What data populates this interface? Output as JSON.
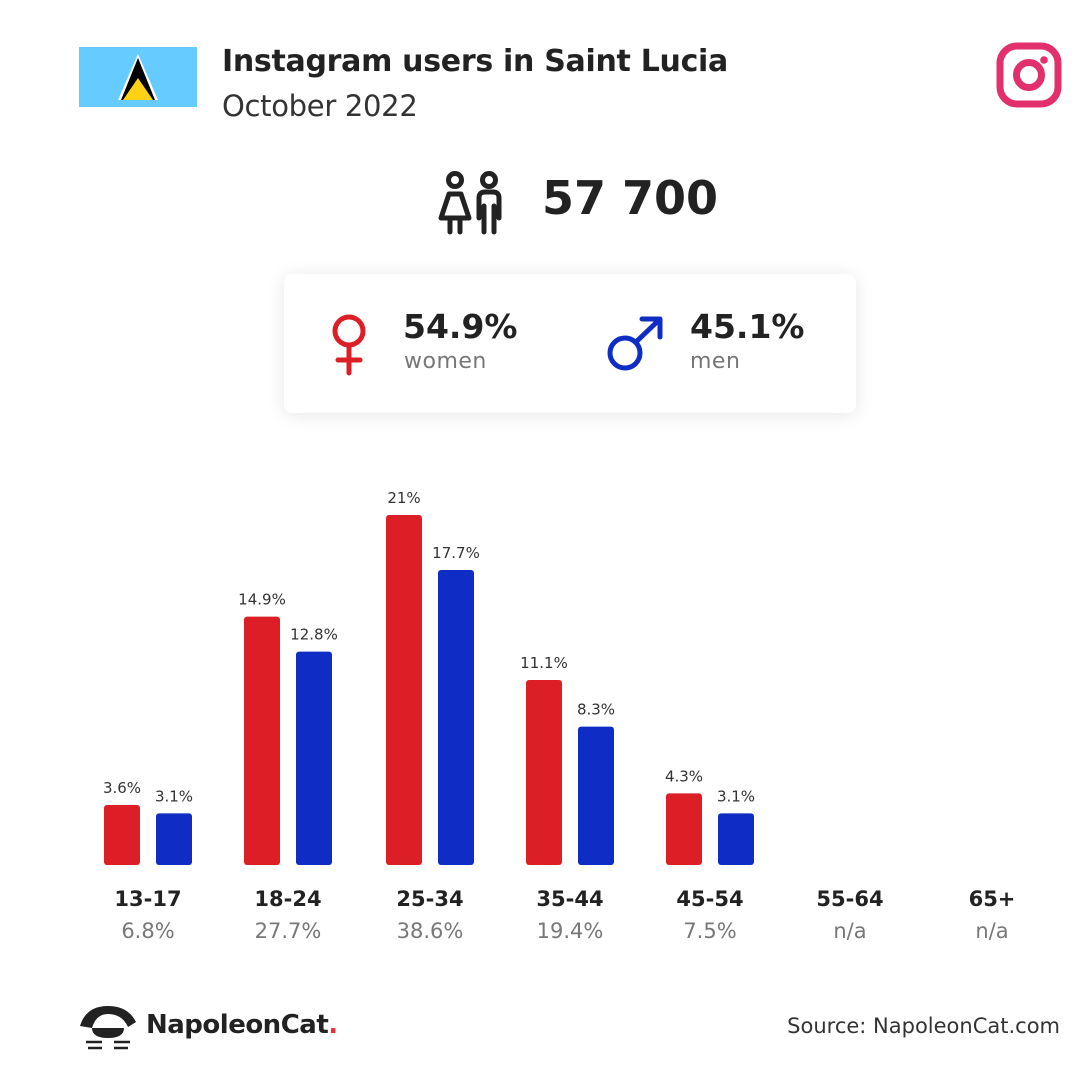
{
  "header": {
    "title": "Instagram users in Saint Lucia",
    "subtitle": "October 2022",
    "flag_icon": "saint-lucia-flag",
    "platform_icon": "instagram-icon"
  },
  "total": {
    "value": "57 700",
    "icon": "people-icon"
  },
  "gender": {
    "women_pct": "54.9%",
    "women_label": "women",
    "men_pct": "45.1%",
    "men_label": "men"
  },
  "footer": {
    "brand": "NapoleonCat",
    "brand_dot": ".",
    "source": "Source: NapoleonCat.com"
  },
  "colors": {
    "women": "#dc1f26",
    "men": "#0f2cc4",
    "instagram": "#e1306c",
    "flag_bg": "#66ccff"
  },
  "chart_data": {
    "type": "bar",
    "categories": [
      "13-17",
      "18-24",
      "25-34",
      "35-44",
      "45-54",
      "55-64",
      "65+"
    ],
    "totals": [
      "6.8%",
      "27.7%",
      "38.6%",
      "19.4%",
      "7.5%",
      "n/a",
      "n/a"
    ],
    "series": [
      {
        "name": "women",
        "values": [
          3.6,
          14.9,
          21,
          11.1,
          4.3,
          null,
          null
        ],
        "labels": [
          "3.6%",
          "14.9%",
          "21%",
          "11.1%",
          "4.3%",
          "",
          ""
        ]
      },
      {
        "name": "men",
        "values": [
          3.1,
          12.8,
          17.7,
          8.3,
          3.1,
          null,
          null
        ],
        "labels": [
          "3.1%",
          "12.8%",
          "17.7%",
          "8.3%",
          "3.1%",
          "",
          ""
        ]
      }
    ],
    "ylim": [
      0,
      21
    ],
    "grid": false
  }
}
